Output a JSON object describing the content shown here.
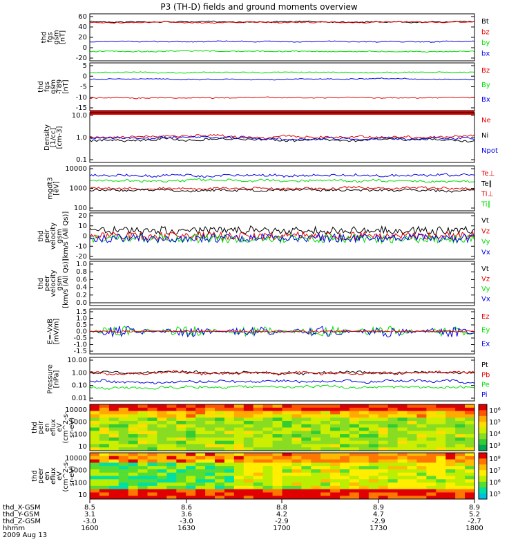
{
  "title": "P3 (TH-D) fields and ground moments overview",
  "colors": {
    "black": "#000000",
    "red": "#e60000",
    "green": "#00dd00",
    "blue": "#0000e6"
  },
  "chart_data": [
    {
      "id": "p1",
      "type": "line",
      "ylabel": [
        "thd",
        "fgs",
        "gsm",
        "[nT]"
      ],
      "yticks": [
        "60",
        "40",
        "20",
        "0",
        "-20"
      ],
      "ylim": [
        -20,
        60
      ],
      "legend": [
        "Bt",
        "bz",
        "by",
        "bx"
      ],
      "series": [
        {
          "name": "Bt",
          "color": "black",
          "level": 50
        },
        {
          "name": "bz",
          "color": "red",
          "level": 49
        },
        {
          "name": "by",
          "color": "blue",
          "level": 12
        },
        {
          "name": "bx",
          "color": "green",
          "level": -7
        }
      ]
    },
    {
      "id": "p2",
      "type": "line",
      "ylabel": [
        "thd",
        "fgs",
        "gsm",
        "-T89",
        "[nT]"
      ],
      "yticks": [
        "5",
        "0",
        "-5",
        "-10",
        "-15"
      ],
      "ylim": [
        -18,
        7
      ],
      "legend": [
        "Bz",
        "By",
        "Bx"
      ],
      "series": [
        {
          "name": "Bz",
          "color": "green",
          "level": 3
        },
        {
          "name": "By",
          "color": "blue",
          "level": -1
        },
        {
          "name": "Bx",
          "color": "red",
          "level": -12
        }
      ]
    },
    {
      "id": "p3",
      "type": "line",
      "scale": "log",
      "ylabel": [
        "Density",
        "[1/cc]",
        "[cm-3]"
      ],
      "yticks": [
        "10.0",
        "1.0",
        "0.1"
      ],
      "ylim": [
        0.1,
        10
      ],
      "legend": [
        "Ne",
        "Ni",
        "Npot"
      ],
      "series": [
        {
          "name": "Ne",
          "color": "red",
          "level": 1.1
        },
        {
          "name": "Ni",
          "color": "black",
          "level": 0.8
        },
        {
          "name": "Npot",
          "color": "blue",
          "level": 0.9
        }
      ]
    },
    {
      "id": "p4",
      "type": "line",
      "scale": "log",
      "ylabel": [
        "mgdt3",
        "[eV]"
      ],
      "yticks": [
        "10000",
        "1000",
        "100"
      ],
      "ylim": [
        100,
        10000
      ],
      "legend": [
        "Te⊥",
        "Te∥",
        "Ti⊥",
        "Ti∥"
      ],
      "series": [
        {
          "name": "Ti_perp",
          "color": "blue",
          "level": 4500
        },
        {
          "name": "Ti_par",
          "color": "green",
          "level": 2500
        },
        {
          "name": "Te_perp",
          "color": "red",
          "level": 1000
        },
        {
          "name": "Te_par",
          "color": "black",
          "level": 800
        }
      ]
    },
    {
      "id": "p5",
      "type": "line",
      "ylabel": [
        "thd",
        "peir",
        "velocity",
        "gsm",
        "[km/s (All Qs)]"
      ],
      "yticks": [
        "20",
        "10",
        "0",
        "-10",
        "-20"
      ],
      "ylim": [
        -30,
        30
      ],
      "legend": [
        "Vt",
        "Vz",
        "Vy",
        "Vx"
      ],
      "series": [
        {
          "name": "Vt",
          "color": "black",
          "level": 8
        },
        {
          "name": "Vz",
          "color": "red",
          "level": 0
        },
        {
          "name": "Vy",
          "color": "green",
          "level": -4
        },
        {
          "name": "Vx",
          "color": "blue",
          "level": -3
        }
      ]
    },
    {
      "id": "p6",
      "type": "line",
      "ylabel": [
        "thd",
        "peer",
        "velocity",
        "gsm",
        "[km/s (All Qs)]"
      ],
      "yticks": [
        "1.0",
        "0.8",
        "0.6",
        "0.4",
        "0.2",
        "0.0"
      ],
      "ylim": [
        0,
        1
      ],
      "legend": [
        "Vt",
        "Vz",
        "Vy",
        "Vx"
      ],
      "series": []
    },
    {
      "id": "p7",
      "type": "line",
      "ylabel": [
        "E=-VxB",
        "[mV/m]"
      ],
      "yticks": [
        "1.5",
        "1.0",
        "0.5",
        "0.0",
        "-0.5",
        "-1.0",
        "-1.5"
      ],
      "ylim": [
        -1.5,
        1.5
      ],
      "legend": [
        "Ez",
        "Ey",
        "Ex"
      ],
      "series": [
        {
          "name": "Ey",
          "color": "green",
          "level": 0
        },
        {
          "name": "Ex",
          "color": "blue",
          "level": 0
        },
        {
          "name": "Ez",
          "color": "red",
          "level": 0
        }
      ]
    },
    {
      "id": "p8",
      "type": "line",
      "scale": "log",
      "ylabel": [
        "Pressure",
        "[nPa]"
      ],
      "yticks": [
        "10.00",
        "1.00",
        "0.10",
        "0.01"
      ],
      "ylim": [
        0.01,
        10
      ],
      "legend": [
        "Pt",
        "Pb",
        "Pe",
        "Pi"
      ],
      "series": [
        {
          "name": "Pt",
          "color": "black",
          "level": 1.05
        },
        {
          "name": "Pb",
          "color": "red",
          "level": 0.95
        },
        {
          "name": "Pe",
          "color": "blue",
          "level": 0.2
        },
        {
          "name": "Pi",
          "color": "green",
          "level": 0.07
        }
      ]
    },
    {
      "id": "p9",
      "type": "heatmap",
      "ylabel": [
        "thd",
        "peir",
        "en",
        "eflux",
        "eV",
        "(cm^2-s-",
        "sr-eV)"
      ],
      "yticks": [
        "10000",
        "1000",
        "100",
        "10"
      ],
      "colorbar_ticks": [
        "10⁶",
        "10⁵",
        "10⁴",
        "10³"
      ]
    },
    {
      "id": "p10",
      "type": "heatmap",
      "ylabel": [
        "thd",
        "peer",
        "en",
        "eflux",
        "eV",
        "(cm^2-s-",
        "sr-eV)"
      ],
      "yticks": [
        "10000",
        "1000",
        "100",
        "10"
      ],
      "colorbar_ticks": [
        "10⁸",
        "10⁷",
        "10⁶",
        "10⁵"
      ]
    }
  ],
  "xaxis": {
    "rows": [
      {
        "label": "thd_X-GSM",
        "values": [
          "8.5",
          "8.6",
          "8.8",
          "8.9",
          "8.9"
        ]
      },
      {
        "label": "thd_Y-GSM",
        "values": [
          "3.1",
          "3.6",
          "4.2",
          "4.7",
          "5.2"
        ]
      },
      {
        "label": "thd_Z-GSM",
        "values": [
          "-3.0",
          "-3.0",
          "-2.9",
          "-2.9",
          "-2.7"
        ]
      },
      {
        "label": "hhmm",
        "values": [
          "1600",
          "1630",
          "1700",
          "1730",
          "1800"
        ]
      }
    ],
    "date": "2009 Aug 13"
  }
}
